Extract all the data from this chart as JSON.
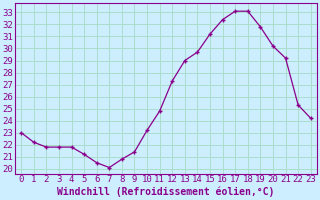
{
  "x": [
    0,
    1,
    2,
    3,
    4,
    5,
    6,
    7,
    8,
    9,
    10,
    11,
    12,
    13,
    14,
    15,
    16,
    17,
    18,
    19,
    20,
    21,
    22,
    23
  ],
  "y": [
    23.0,
    22.2,
    21.8,
    21.8,
    21.8,
    21.2,
    20.5,
    20.1,
    20.8,
    21.4,
    23.2,
    24.8,
    27.3,
    29.0,
    29.7,
    31.2,
    32.4,
    33.1,
    33.1,
    31.8,
    30.2,
    29.2,
    25.3,
    24.2
  ],
  "line_color": "#8b008b",
  "marker": "+",
  "bg_color": "#cceeff",
  "grid_color": "#aaddcc",
  "xlabel": "Windchill (Refroidissement éolien,°C)",
  "ylabel_ticks": [
    20,
    21,
    22,
    23,
    24,
    25,
    26,
    27,
    28,
    29,
    30,
    31,
    32,
    33
  ],
  "ylim": [
    19.6,
    33.8
  ],
  "xlim": [
    -0.5,
    23.5
  ],
  "xticks": [
    0,
    1,
    2,
    3,
    4,
    5,
    6,
    7,
    8,
    9,
    10,
    11,
    12,
    13,
    14,
    15,
    16,
    17,
    18,
    19,
    20,
    21,
    22,
    23
  ],
  "font_color": "#8b008b",
  "font_size": 6.5,
  "label_font_size": 7
}
